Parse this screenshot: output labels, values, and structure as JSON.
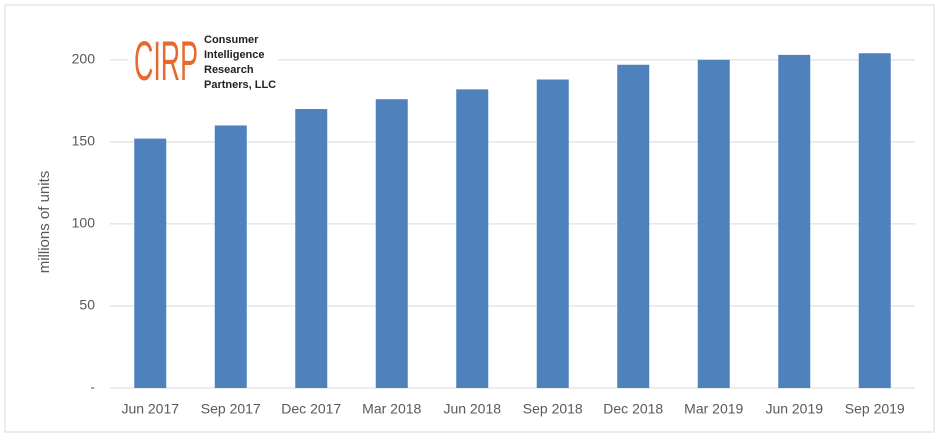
{
  "chart_data": {
    "type": "bar",
    "y_label": "millions of units",
    "categories": [
      "Jun 2017",
      "Sep 2017",
      "Dec 2017",
      "Mar 2018",
      "Jun 2018",
      "Sep 2018",
      "Dec 2018",
      "Mar 2019",
      "Jun 2019",
      "Sep 2019"
    ],
    "values": [
      152,
      160,
      170,
      176,
      182,
      188,
      197,
      200,
      203,
      204
    ],
    "color": "#4f81bd",
    "ylim": [
      0,
      220
    ],
    "yticks": [
      {
        "value": 0,
        "label": "-"
      },
      50,
      100,
      150,
      200
    ],
    "grid": true,
    "logo": {
      "mark": "CIRP",
      "lines": [
        "Consumer",
        "Intelligence",
        "Research",
        "Partners, LLC"
      ]
    }
  }
}
